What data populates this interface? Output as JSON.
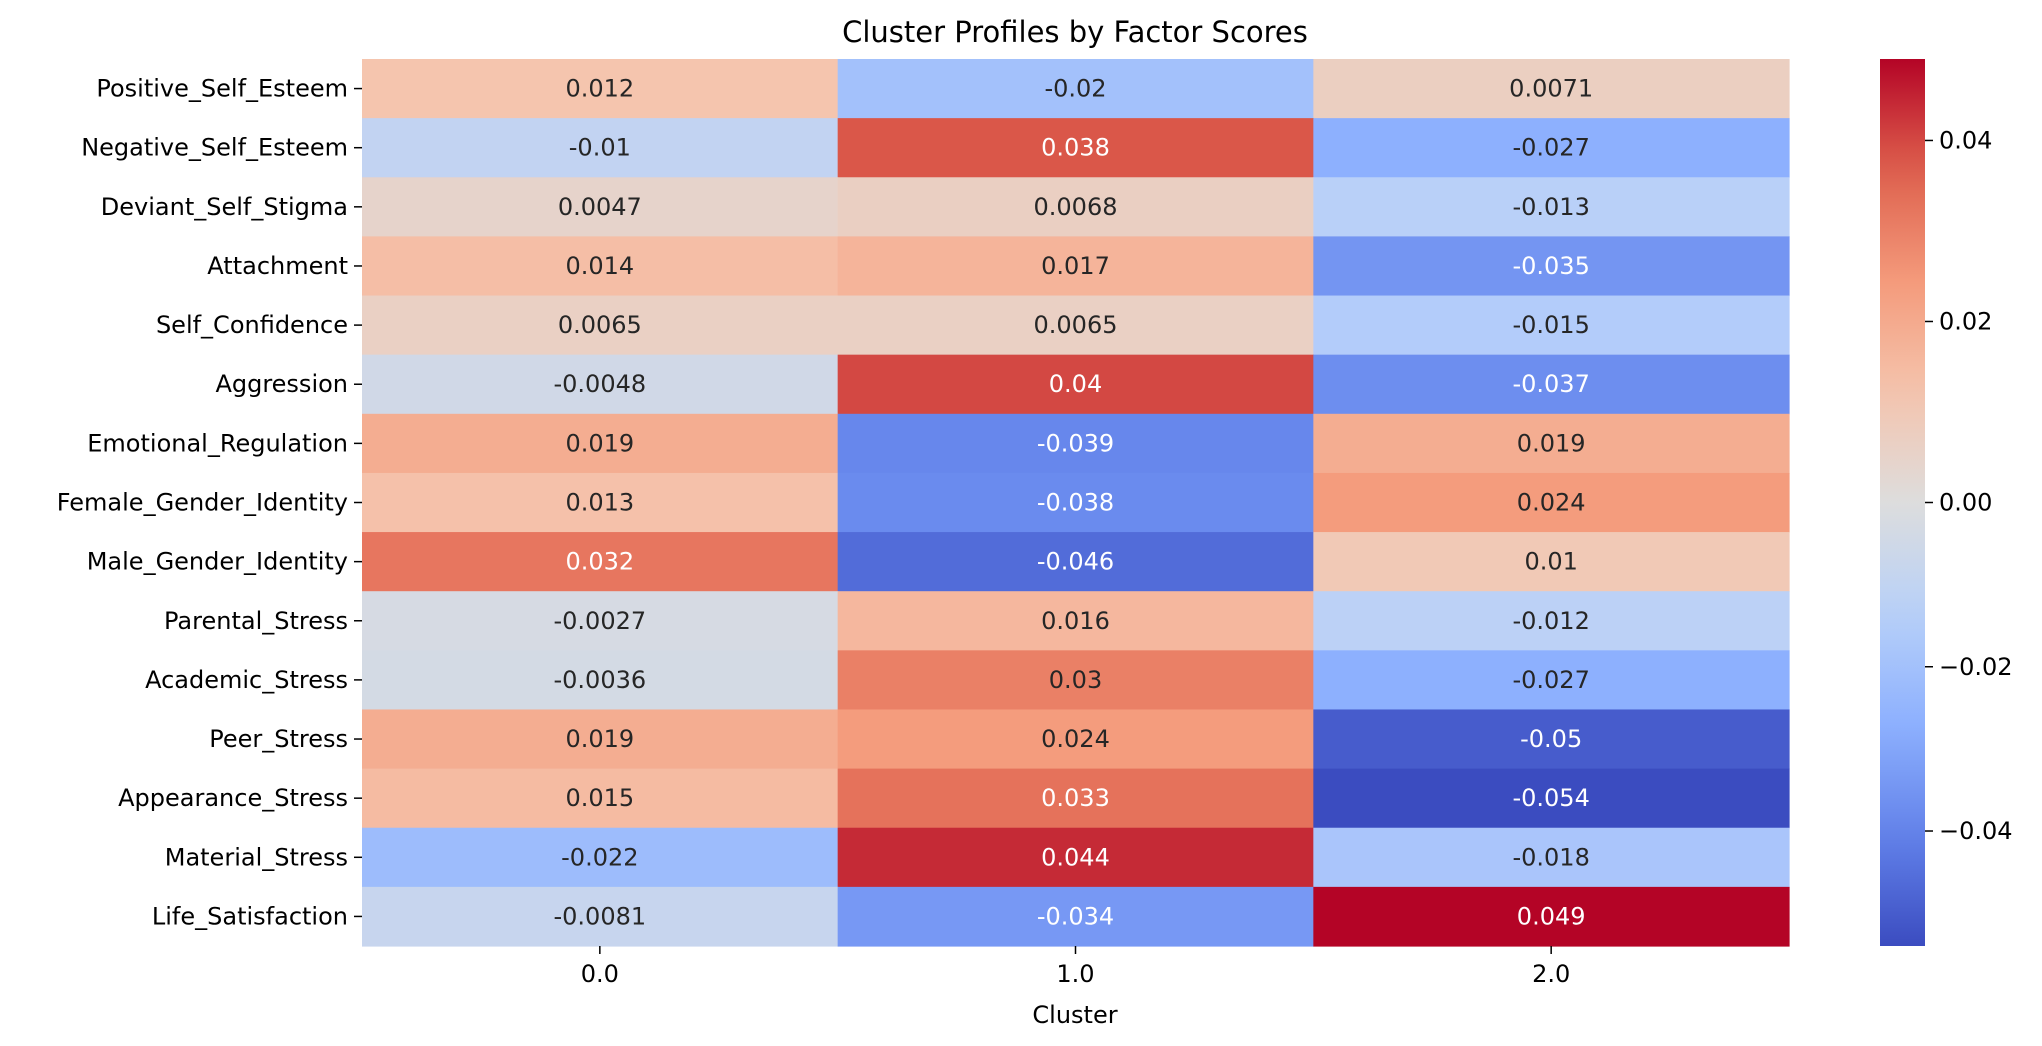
{
  "chart_data": {
    "type": "heatmap",
    "title": "Cluster Profiles by Factor Scores",
    "xlabel": "Cluster",
    "ylabel": "",
    "colormap": "coolwarm",
    "vmin": -0.054,
    "vmax": 0.049,
    "center": 0,
    "x_categories": [
      "0.0",
      "1.0",
      "2.0"
    ],
    "y_categories": [
      "Positive_Self_Esteem",
      "Negative_Self_Esteem",
      "Deviant_Self_Stigma",
      "Attachment",
      "Self_Confidence",
      "Aggression",
      "Emotional_Regulation",
      "Female_Gender_Identity",
      "Male_Gender_Identity",
      "Parental_Stress",
      "Academic_Stress",
      "Peer_Stress",
      "Appearance_Stress",
      "Material_Stress",
      "Life_Satisfaction"
    ],
    "values": [
      [
        0.012,
        -0.02,
        0.0071
      ],
      [
        -0.01,
        0.038,
        -0.027
      ],
      [
        0.0047,
        0.0068,
        -0.013
      ],
      [
        0.014,
        0.017,
        -0.035
      ],
      [
        0.0065,
        0.0065,
        -0.015
      ],
      [
        -0.0048,
        0.04,
        -0.037
      ],
      [
        0.019,
        -0.039,
        0.019
      ],
      [
        0.013,
        -0.038,
        0.024
      ],
      [
        0.032,
        -0.046,
        0.01
      ],
      [
        -0.0027,
        0.016,
        -0.012
      ],
      [
        -0.0036,
        0.03,
        -0.027
      ],
      [
        0.019,
        0.024,
        -0.05
      ],
      [
        0.015,
        0.033,
        -0.054
      ],
      [
        -0.022,
        0.044,
        -0.018
      ],
      [
        -0.0081,
        -0.034,
        0.049
      ]
    ],
    "annotations": [
      [
        "0.012",
        "-0.02",
        "0.0071"
      ],
      [
        "-0.01",
        "0.038",
        "-0.027"
      ],
      [
        "0.0047",
        "0.0068",
        "-0.013"
      ],
      [
        "0.014",
        "0.017",
        "-0.035"
      ],
      [
        "0.0065",
        "0.0065",
        "-0.015"
      ],
      [
        "-0.0048",
        "0.04",
        "-0.037"
      ],
      [
        "0.019",
        "-0.039",
        "0.019"
      ],
      [
        "0.013",
        "-0.038",
        "0.024"
      ],
      [
        "0.032",
        "-0.046",
        "0.01"
      ],
      [
        "-0.0027",
        "0.016",
        "-0.012"
      ],
      [
        "-0.0036",
        "0.03",
        "-0.027"
      ],
      [
        "0.019",
        "0.024",
        "-0.05"
      ],
      [
        "0.015",
        "0.033",
        "-0.054"
      ],
      [
        "-0.022",
        "0.044",
        "-0.018"
      ],
      [
        "-0.0081",
        "-0.034",
        "0.049"
      ]
    ],
    "colorbar_ticks": [
      0.04,
      0.02,
      0.0,
      -0.02,
      -0.04
    ],
    "colorbar_tick_labels": [
      "0.04",
      "0.02",
      "0.00",
      "−0.02",
      "−0.04"
    ],
    "grid": false,
    "legend": "colorbar-right"
  }
}
